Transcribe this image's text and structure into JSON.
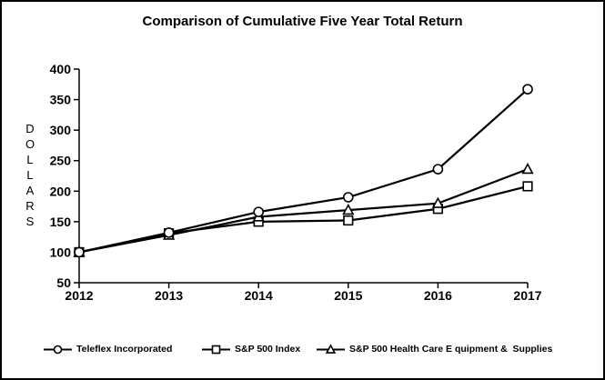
{
  "window": {
    "background_color": "#ffffff",
    "border_color": "#000000",
    "line_color": "#000000",
    "marker_fill_color": "#ffffff",
    "text_color": "#000000"
  },
  "chart_data": {
    "type": "line",
    "title": "Comparison of Cumulative Five Year Total Return",
    "ylabel": "DOLLARS",
    "xlabel": "",
    "x": [
      2012,
      2013,
      2014,
      2015,
      2016,
      2017
    ],
    "ylim": [
      50,
      400
    ],
    "ytick_step": 50,
    "yticks": [
      50,
      100,
      150,
      200,
      250,
      300,
      350,
      400
    ],
    "grid": false,
    "legend_position": "bottom",
    "series": [
      {
        "name": "Teleflex Incorporated",
        "marker": "circle",
        "values": [
          100,
          132,
          166,
          190,
          236,
          367
        ]
      },
      {
        "name": "S&P 500 Index",
        "marker": "square",
        "values": [
          100,
          131,
          150,
          152,
          171,
          208
        ]
      },
      {
        "name": "S&P 500 Health Care E quipment &  Supplies",
        "marker": "triangle",
        "values": [
          100,
          128,
          158,
          169,
          180,
          236
        ]
      }
    ]
  }
}
